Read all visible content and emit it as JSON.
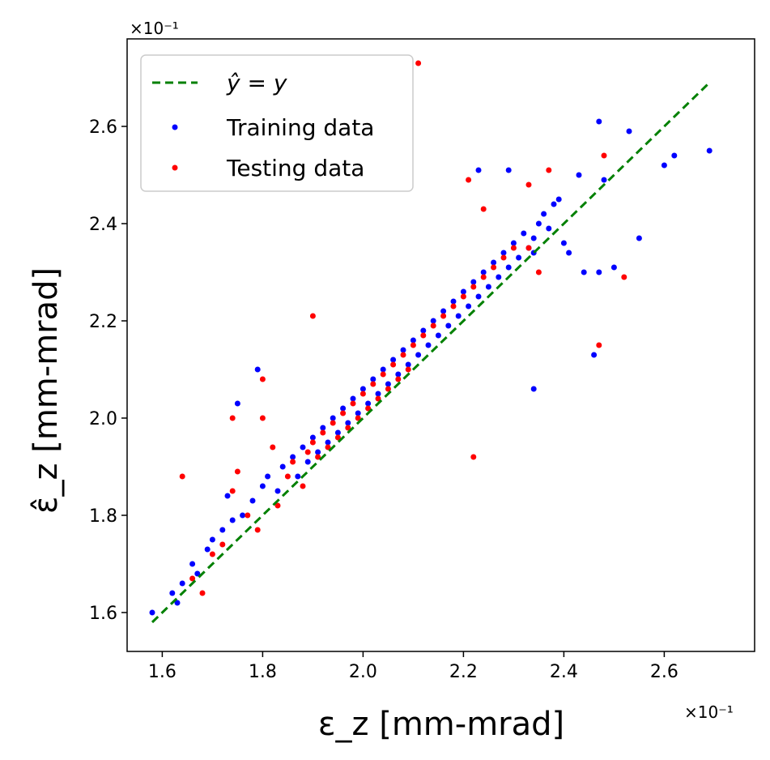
{
  "chart_data": {
    "type": "scatter",
    "title": "",
    "xlabel": "ε_z [mm-mrad]",
    "ylabel": "ε̂_z [mm-mrad]",
    "x_multiplier": "×10⁻¹",
    "y_multiplier": "×10⁻¹",
    "xlim": [
      1.53,
      2.78
    ],
    "ylim": [
      1.52,
      2.78
    ],
    "xticks": [
      1.6,
      1.8,
      2.0,
      2.2,
      2.4,
      2.6
    ],
    "xtick_labels": [
      "1.6",
      "1.8",
      "2.0",
      "2.2",
      "2.4",
      "2.6"
    ],
    "yticks": [
      1.6,
      1.8,
      2.0,
      2.2,
      2.4,
      2.6
    ],
    "ytick_labels": [
      "1.6",
      "1.8",
      "2.0",
      "2.2",
      "2.4",
      "2.6"
    ],
    "grid": false,
    "legend_position": "upper-left",
    "reference_line": {
      "name": "ŷ = y",
      "x": [
        1.58,
        2.69
      ],
      "y": [
        1.58,
        2.69
      ],
      "color": "#008000",
      "style": "dashed"
    },
    "series": [
      {
        "name": "Training data",
        "color": "#0000ff",
        "x": [
          1.58,
          1.63,
          1.64,
          1.62,
          1.66,
          1.67,
          1.69,
          1.7,
          1.72,
          1.74,
          1.73,
          1.76,
          1.78,
          1.8,
          1.81,
          1.83,
          1.84,
          1.86,
          1.87,
          1.88,
          1.89,
          1.9,
          1.91,
          1.92,
          1.93,
          1.94,
          1.95,
          1.96,
          1.97,
          1.98,
          1.99,
          2.0,
          2.01,
          2.02,
          2.03,
          2.04,
          2.05,
          2.06,
          2.07,
          2.08,
          2.09,
          2.1,
          2.11,
          2.12,
          2.13,
          2.14,
          2.15,
          2.16,
          2.17,
          2.18,
          2.19,
          2.2,
          2.21,
          2.22,
          2.23,
          2.24,
          2.25,
          2.26,
          2.27,
          2.28,
          2.29,
          2.3,
          2.31,
          2.32,
          2.33,
          2.34,
          2.35,
          2.36,
          2.37,
          2.38,
          2.4,
          2.41,
          2.43,
          2.44,
          2.46,
          2.47,
          2.48,
          2.5,
          2.53,
          2.55,
          2.6,
          2.62,
          2.69,
          2.23,
          2.29,
          2.34,
          2.39,
          1.75,
          1.79,
          2.47,
          2.34
        ],
        "y": [
          1.6,
          1.62,
          1.66,
          1.64,
          1.7,
          1.68,
          1.73,
          1.75,
          1.77,
          1.79,
          1.84,
          1.8,
          1.83,
          1.86,
          1.88,
          1.85,
          1.9,
          1.92,
          1.88,
          1.94,
          1.91,
          1.96,
          1.93,
          1.98,
          1.95,
          2.0,
          1.97,
          2.02,
          1.99,
          2.04,
          2.01,
          2.06,
          2.03,
          2.08,
          2.05,
          2.1,
          2.07,
          2.12,
          2.09,
          2.14,
          2.11,
          2.16,
          2.13,
          2.18,
          2.15,
          2.2,
          2.17,
          2.22,
          2.19,
          2.24,
          2.21,
          2.26,
          2.23,
          2.28,
          2.25,
          2.3,
          2.27,
          2.32,
          2.29,
          2.34,
          2.31,
          2.36,
          2.33,
          2.38,
          2.35,
          2.37,
          2.4,
          2.42,
          2.39,
          2.44,
          2.36,
          2.34,
          2.5,
          2.3,
          2.13,
          2.61,
          2.49,
          2.31,
          2.59,
          2.37,
          2.52,
          2.54,
          2.55,
          2.51,
          2.51,
          2.06,
          2.45,
          2.03,
          2.1,
          2.3,
          2.34
        ]
      },
      {
        "name": "Testing data",
        "color": "#ff0000",
        "x": [
          1.64,
          1.66,
          1.68,
          1.7,
          1.72,
          1.74,
          1.75,
          1.77,
          1.79,
          1.8,
          1.82,
          1.83,
          1.85,
          1.86,
          1.88,
          1.89,
          1.9,
          1.91,
          1.92,
          1.93,
          1.94,
          1.95,
          1.96,
          1.97,
          1.98,
          1.99,
          2.0,
          2.01,
          2.02,
          2.03,
          2.04,
          2.05,
          2.06,
          2.07,
          2.08,
          2.09,
          2.1,
          2.12,
          2.14,
          2.16,
          2.18,
          2.2,
          2.22,
          2.24,
          2.26,
          2.28,
          2.3,
          2.33,
          2.37,
          2.47,
          2.48,
          2.52,
          2.11,
          2.21,
          2.22,
          2.33,
          1.8,
          1.74,
          1.9,
          2.24,
          2.35
        ],
        "y": [
          1.88,
          1.67,
          1.64,
          1.72,
          1.74,
          1.85,
          1.89,
          1.8,
          1.77,
          2.08,
          1.94,
          1.82,
          1.88,
          1.91,
          1.86,
          1.93,
          1.95,
          1.92,
          1.97,
          1.94,
          1.99,
          1.96,
          2.01,
          1.98,
          2.03,
          2.0,
          2.05,
          2.02,
          2.07,
          2.04,
          2.09,
          2.06,
          2.11,
          2.08,
          2.13,
          2.1,
          2.15,
          2.17,
          2.19,
          2.21,
          2.23,
          2.25,
          2.27,
          2.29,
          2.31,
          2.33,
          2.35,
          2.48,
          2.51,
          2.15,
          2.54,
          2.29,
          2.73,
          2.49,
          1.92,
          2.35,
          2.0,
          2.0,
          2.21,
          2.43,
          2.3
        ]
      }
    ]
  }
}
